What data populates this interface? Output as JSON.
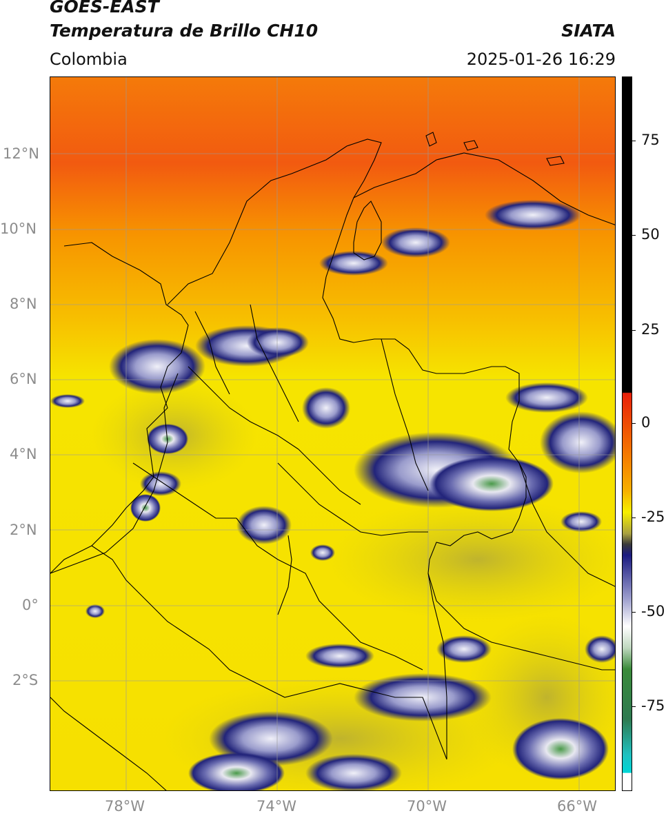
{
  "header": {
    "satellite": "GOES-EAST",
    "product": "Temperatura de Brillo CH10",
    "region": "Colombia",
    "agency": "SIATA",
    "datetime": "2025-01-26 16:29"
  },
  "axes": {
    "lat_labels": [
      "12°N",
      "10°N",
      "8°N",
      "6°N",
      "4°N",
      "2°N",
      "0°",
      "2°S"
    ],
    "lon_labels": [
      "78°W",
      "74°W",
      "70°W",
      "66°W"
    ]
  },
  "colorbar": {
    "labels": [
      "75",
      "50",
      "25",
      "0",
      "-25",
      "-50",
      "-75"
    ],
    "colors": {
      "black": "#000000",
      "red": "#e8200a",
      "orange": "#f7a000",
      "yellow": "#f6ef00",
      "olive": "#8a8a30",
      "navy": "#1a1a80",
      "white": "#ffffff",
      "green": "#2e8b2e",
      "cyan": "#00d6d6"
    }
  },
  "map_colors": {
    "land_border": "#000000",
    "grid": "#9a9a9a",
    "warm_top": "#f04a10",
    "warm_mid": "#f7a000",
    "base": "#f6e000",
    "cloud_dark": "#22247a",
    "cloud_light": "#e8e8f4",
    "cloud_cold": "#3a8a3a"
  }
}
